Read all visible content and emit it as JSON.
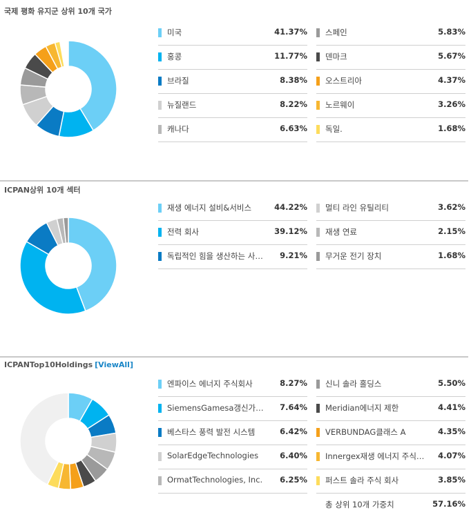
{
  "sections": [
    {
      "title": "국제 평화 유지군 상위 10개 국가",
      "link": "",
      "items": [
        {
          "label": "미국",
          "value": "41.37%",
          "color": "#6ccff6"
        },
        {
          "label": "홍콩",
          "value": "11.77%",
          "color": "#00b3f0"
        },
        {
          "label": "브라질",
          "value": "8.38%",
          "color": "#0a7bc4"
        },
        {
          "label": "뉴질랜드",
          "value": "8.22%",
          "color": "#d0d0d0"
        },
        {
          "label": "캐나다",
          "value": "6.63%",
          "color": "#b8b8b8"
        },
        {
          "label": "스페인",
          "value": "5.83%",
          "color": "#9a9a9a"
        },
        {
          "label": "덴마크",
          "value": "5.67%",
          "color": "#4a4a4a"
        },
        {
          "label": "오스트리아",
          "value": "4.37%",
          "color": "#f5a01a"
        },
        {
          "label": "노르웨이",
          "value": "3.26%",
          "color": "#f7b731"
        },
        {
          "label": "독일.",
          "value": "1.68%",
          "color": "#fddc5c"
        }
      ]
    },
    {
      "title": "ICPAN상위 10개 섹터",
      "link": "",
      "items": [
        {
          "label": "재생 에너지 설비&서비스",
          "value": "44.22%",
          "color": "#6ccff6"
        },
        {
          "label": "전력 회사",
          "value": "39.12%",
          "color": "#00b3f0"
        },
        {
          "label": "독립적인 힘을 생산하는 사람들",
          "value": "9.21%",
          "color": "#0a7bc4"
        },
        {
          "label": "멀티 라인 유틸리티",
          "value": "3.62%",
          "color": "#d0d0d0"
        },
        {
          "label": "재생 연료",
          "value": "2.15%",
          "color": "#b8b8b8"
        },
        {
          "label": "무거운 전기 장치",
          "value": "1.68%",
          "color": "#9a9a9a"
        }
      ]
    },
    {
      "title": "ICPANTop10Holdings",
      "link": "[ViewAll]",
      "items": [
        {
          "label": "엔파이스 에너지 주식회사",
          "value": "8.27%",
          "color": "#6ccff6"
        },
        {
          "label": "SiemensGamesa갱신가능에너지",
          "value": "7.64%",
          "color": "#00b3f0"
        },
        {
          "label": "베스타스 풍력 발전 시스템",
          "value": "6.42%",
          "color": "#0a7bc4"
        },
        {
          "label": "SolarEdgeTechnologies",
          "value": "6.40%",
          "color": "#d0d0d0"
        },
        {
          "label": "OrmatTechnologies, Inc.",
          "value": "6.25%",
          "color": "#b8b8b8"
        },
        {
          "label": "신니 솔라 홀딩스",
          "value": "5.50%",
          "color": "#9a9a9a"
        },
        {
          "label": "Meridian에너지 제한",
          "value": "4.41%",
          "color": "#4a4a4a"
        },
        {
          "label": "VERBUNDAG클래스 A",
          "value": "4.35%",
          "color": "#f5a01a"
        },
        {
          "label": "Innergex재생 에너지 주식회사",
          "value": "4.07%",
          "color": "#f7b731"
        },
        {
          "label": "퍼스트 솔라 주식 회사",
          "value": "3.85%",
          "color": "#fddc5c"
        }
      ],
      "total_label": "총 상위 10개 가중치",
      "total_value": "57.16%",
      "remainder_color": "#f0f0f0"
    }
  ],
  "chart_data": [
    {
      "type": "pie",
      "title": "국제 평화 유지군 상위 10개 국가",
      "categories": [
        "미국",
        "홍콩",
        "브라질",
        "뉴질랜드",
        "캐나다",
        "스페인",
        "덴마크",
        "오스트리아",
        "노르웨이",
        "독일."
      ],
      "values": [
        41.37,
        11.77,
        8.38,
        8.22,
        6.63,
        5.83,
        5.67,
        4.37,
        3.26,
        1.68
      ]
    },
    {
      "type": "pie",
      "title": "ICPAN상위 10개 섹터",
      "categories": [
        "재생 에너지 설비&서비스",
        "전력 회사",
        "독립적인 힘을 생산하는 사람들",
        "멀티 라인 유틸리티",
        "재생 연료",
        "무거운 전기 장치"
      ],
      "values": [
        44.22,
        39.12,
        9.21,
        3.62,
        2.15,
        1.68
      ]
    },
    {
      "type": "pie",
      "title": "ICPANTop10Holdings",
      "categories": [
        "엔파이스 에너지 주식회사",
        "SiemensGamesa갱신가능에너지",
        "베스타스 풍력 발전 시스템",
        "SolarEdgeTechnologies",
        "OrmatTechnologies, Inc.",
        "신니 솔라 홀딩스",
        "Meridian에너지 제한",
        "VERBUNDAG클래스 A",
        "Innergex재생 에너지 주식회사",
        "퍼스트 솔라 주식 회사"
      ],
      "values": [
        8.27,
        7.64,
        6.42,
        6.4,
        6.25,
        5.5,
        4.41,
        4.35,
        4.07,
        3.85
      ]
    }
  ]
}
